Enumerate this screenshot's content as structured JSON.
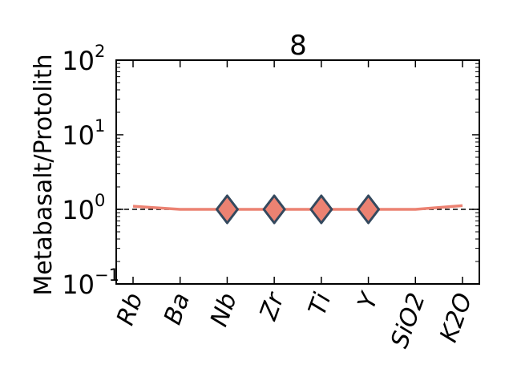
{
  "chart_data": {
    "type": "line",
    "title": "8",
    "xlabel": "",
    "ylabel": "Metabasalt/Protolith",
    "yscale": "log",
    "ylim": [
      0.1,
      100
    ],
    "yticks": [
      {
        "base": "10",
        "exp": "−1"
      },
      {
        "base": "10",
        "exp": "0"
      },
      {
        "base": "10",
        "exp": "1"
      },
      {
        "base": "10",
        "exp": "2"
      }
    ],
    "categories": [
      "Rb",
      "Ba",
      "Nb",
      "Zr",
      "Ti",
      "Y",
      "SiO2",
      "K2O"
    ],
    "series": [
      {
        "values": [
          1.1,
          1.0,
          1.0,
          1.0,
          1.0,
          1.0,
          1.0,
          1.12
        ],
        "marker_flags": [
          false,
          false,
          true,
          true,
          true,
          true,
          false,
          false
        ]
      }
    ],
    "reference_line": 1,
    "grid": false,
    "colors": {
      "line": "#ec8272",
      "marker_fill": "#ec8272",
      "marker_edge": "#34495e",
      "reference": "#000000"
    }
  }
}
